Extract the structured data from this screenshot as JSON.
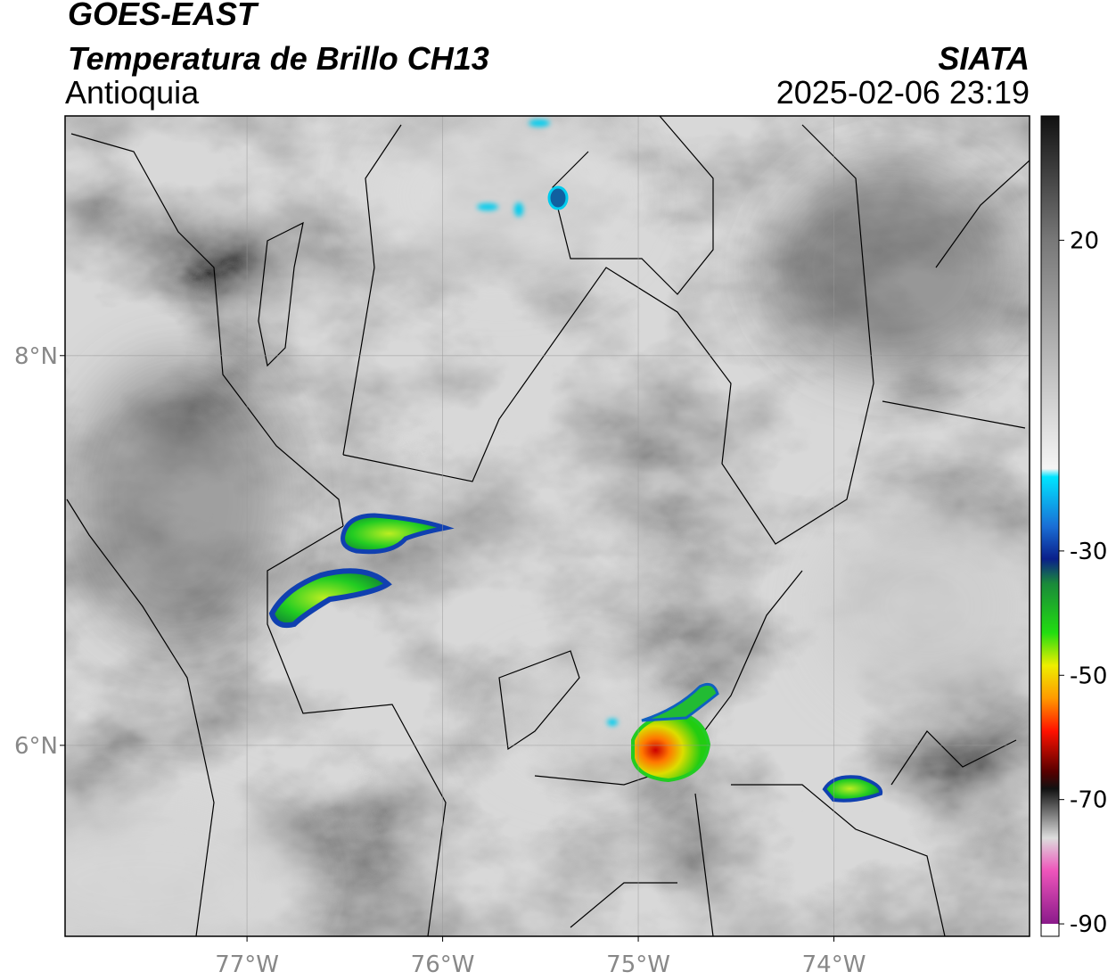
{
  "header": {
    "title": "GOES-EAST",
    "subtitle": "Temperatura de Brillo CH13",
    "region": "Antioquia",
    "source": "SIATA",
    "timestamp": "2025-02-06 23:19"
  },
  "map": {
    "xlim": [
      -77.93,
      -73.0
    ],
    "ylim": [
      5.02,
      9.23
    ],
    "xticks": [
      {
        "value": -77,
        "label": "77°W"
      },
      {
        "value": -76,
        "label": "76°W"
      },
      {
        "value": -75,
        "label": "75°W"
      },
      {
        "value": -74,
        "label": "74°W"
      }
    ],
    "yticks": [
      {
        "value": 8,
        "label": "8°N"
      },
      {
        "value": 6,
        "label": "6°N"
      }
    ],
    "grid": true
  },
  "colorbar": {
    "lim": [
      -92,
      40
    ],
    "ticks": [
      20,
      -30,
      -50,
      -70,
      -90
    ]
  }
}
